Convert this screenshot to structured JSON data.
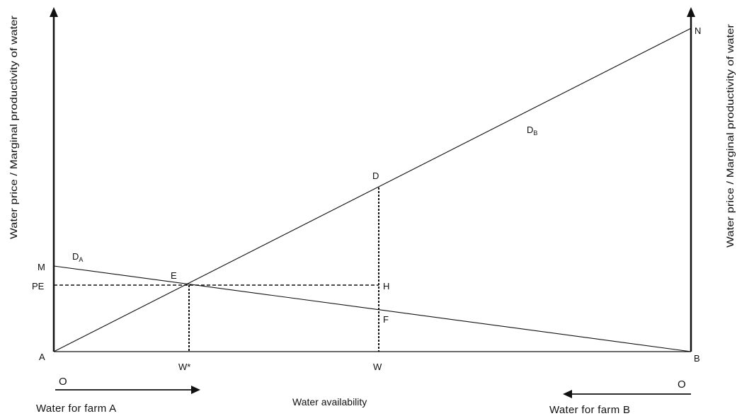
{
  "axes": {
    "left_label": "Water price / Marginal productivity of water",
    "right_label": "Water price / Marginal productivity of water",
    "x_label": "Water availability"
  },
  "points": {
    "A": "A",
    "B": "B",
    "M": "M",
    "N": "N",
    "D": "D",
    "E": "E",
    "F": "F",
    "H": "H",
    "PE": "PE",
    "W": "W",
    "W_star": "W*"
  },
  "curves": {
    "DA": {
      "main": "D",
      "sub": "A"
    },
    "DB": {
      "main": "D",
      "sub": "B"
    }
  },
  "origins": {
    "left": "O",
    "right": "O"
  },
  "arrows": {
    "left": "Water for farm A",
    "right": "Water for farm B"
  }
}
